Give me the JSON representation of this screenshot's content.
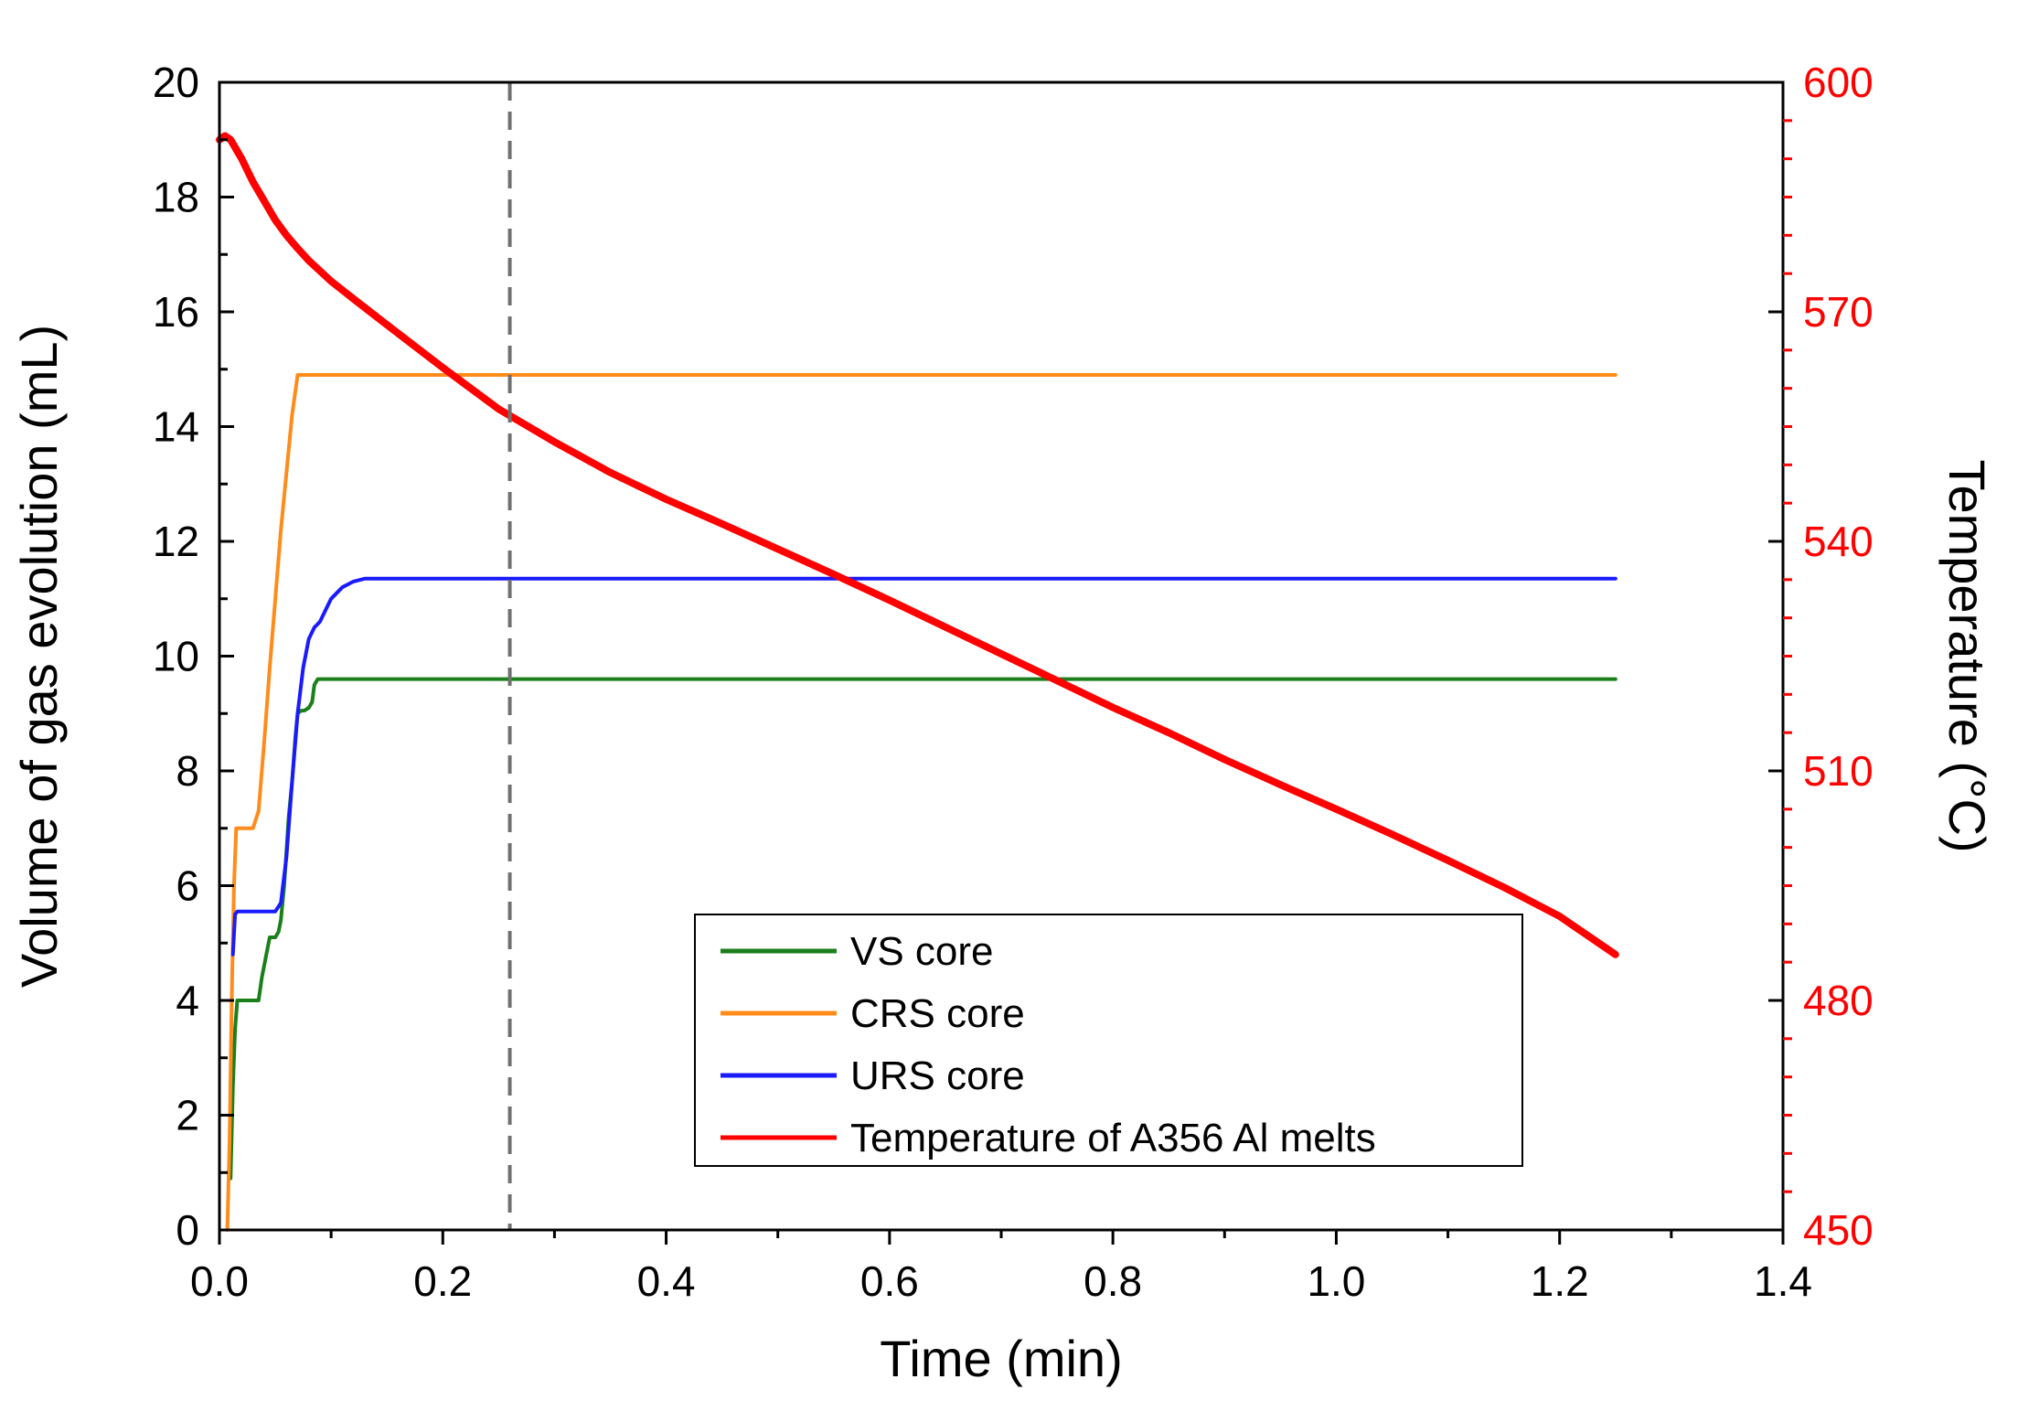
{
  "chart_data": {
    "type": "line",
    "xlabel": "Time (min)",
    "ylabel": "Volume of gas evolution (mL)",
    "ylabel_right": "Temperature (°C)",
    "xlim": [
      0.0,
      1.4
    ],
    "ylim": [
      0,
      20
    ],
    "ylim_right": [
      450,
      600
    ],
    "x_ticks": [
      0.0,
      0.2,
      0.4,
      0.6,
      0.8,
      1.0,
      1.2,
      1.4
    ],
    "x_tick_labels": [
      "0.0",
      "0.2",
      "0.4",
      "0.6",
      "0.8",
      "1.0",
      "1.2",
      "1.4"
    ],
    "y_ticks": [
      0,
      2,
      4,
      6,
      8,
      10,
      12,
      14,
      16,
      18,
      20
    ],
    "y_tick_labels": [
      "0",
      "2",
      "4",
      "6",
      "8",
      "10",
      "12",
      "14",
      "16",
      "18",
      "20"
    ],
    "y_right_ticks": [
      450,
      480,
      510,
      540,
      570,
      600
    ],
    "y_right_tick_labels": [
      "450",
      "480",
      "510",
      "540",
      "570",
      "600"
    ],
    "vline_x": 0.26,
    "legend_position": "bottom-center",
    "grid": false,
    "series": [
      {
        "name": "VS core",
        "axis": "left",
        "color": "#1a7f1a",
        "x": [
          0.01,
          0.012,
          0.014,
          0.016,
          0.019,
          0.035,
          0.038,
          0.042,
          0.045,
          0.048,
          0.05,
          0.053,
          0.055,
          0.058,
          0.06,
          0.062,
          0.065,
          0.068,
          0.07,
          0.073,
          0.076,
          0.08,
          0.083,
          0.085,
          0.088,
          0.091,
          0.095,
          1.25
        ],
        "y": [
          0.9,
          2.5,
          3.5,
          4.0,
          4.0,
          4.0,
          4.4,
          4.8,
          5.1,
          5.1,
          5.1,
          5.2,
          5.4,
          6.0,
          6.6,
          7.2,
          7.8,
          8.6,
          9.0,
          9.05,
          9.05,
          9.1,
          9.2,
          9.5,
          9.6,
          9.6,
          9.6,
          9.6
        ]
      },
      {
        "name": "CRS core",
        "axis": "left",
        "color": "#ff8c1a",
        "x": [
          0.007,
          0.009,
          0.011,
          0.013,
          0.015,
          0.017,
          0.02,
          0.03,
          0.035,
          0.04,
          0.045,
          0.05,
          0.055,
          0.06,
          0.065,
          0.07,
          0.073,
          0.076,
          1.25
        ],
        "y": [
          0.0,
          1.5,
          4.0,
          6.0,
          7.0,
          7.0,
          7.0,
          7.0,
          7.3,
          8.5,
          9.8,
          11.0,
          12.2,
          13.2,
          14.2,
          14.9,
          14.9,
          14.9,
          14.9
        ]
      },
      {
        "name": "URS core",
        "axis": "left",
        "color": "#1a1aff",
        "x": [
          0.012,
          0.014,
          0.016,
          0.02,
          0.03,
          0.04,
          0.05,
          0.055,
          0.06,
          0.065,
          0.07,
          0.075,
          0.08,
          0.085,
          0.09,
          0.095,
          0.1,
          0.11,
          0.12,
          0.13,
          0.14,
          0.15,
          1.25
        ],
        "y": [
          4.8,
          5.5,
          5.55,
          5.55,
          5.55,
          5.55,
          5.55,
          5.7,
          6.5,
          7.8,
          9.0,
          9.8,
          10.3,
          10.5,
          10.6,
          10.8,
          11.0,
          11.2,
          11.3,
          11.35,
          11.35,
          11.35,
          11.35
        ]
      },
      {
        "name": "Temperature of A356 Al melts",
        "axis": "right",
        "color": "#ff0000",
        "x": [
          0.0,
          0.005,
          0.01,
          0.02,
          0.03,
          0.04,
          0.05,
          0.06,
          0.07,
          0.08,
          0.1,
          0.12,
          0.15,
          0.2,
          0.25,
          0.3,
          0.35,
          0.4,
          0.45,
          0.5,
          0.55,
          0.6,
          0.65,
          0.7,
          0.75,
          0.8,
          0.85,
          0.9,
          0.95,
          1.0,
          1.05,
          1.1,
          1.15,
          1.2,
          1.25
        ],
        "y": [
          592.5,
          593.0,
          592.5,
          590.0,
          587.0,
          584.5,
          582.0,
          580.0,
          578.3,
          576.7,
          574.0,
          571.7,
          568.3,
          562.7,
          557.3,
          553.0,
          549.0,
          545.5,
          542.3,
          539.0,
          535.7,
          532.3,
          528.8,
          525.3,
          521.8,
          518.3,
          515.0,
          511.5,
          508.2,
          505.0,
          501.7,
          498.3,
          494.8,
          491.0,
          486.0
        ]
      }
    ]
  }
}
